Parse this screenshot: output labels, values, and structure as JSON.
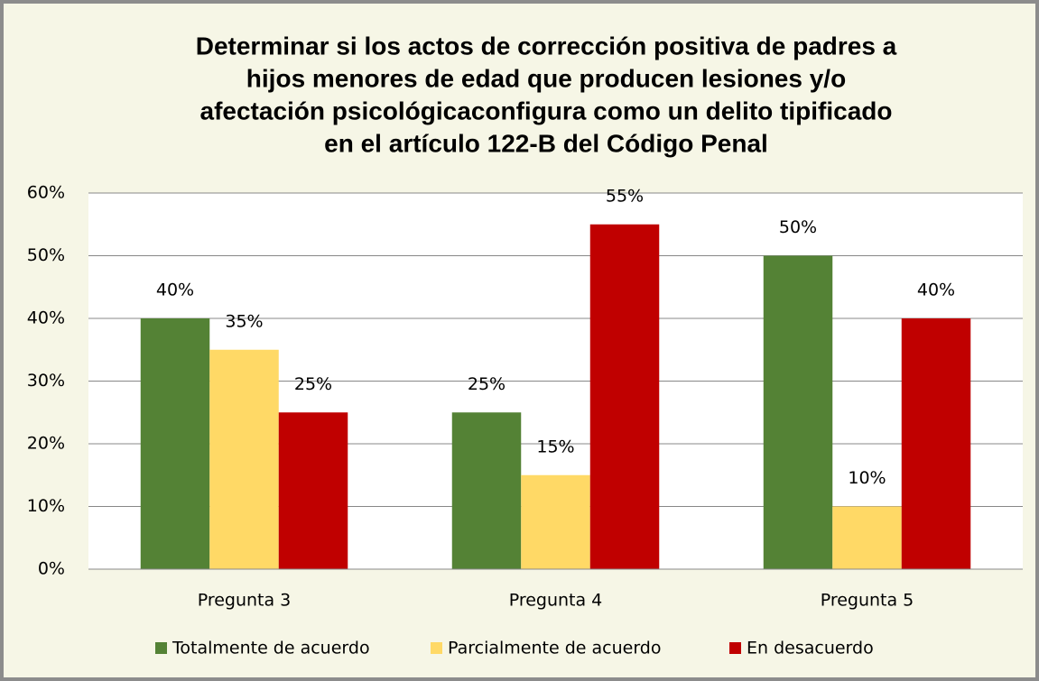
{
  "chart_data": {
    "type": "bar",
    "title": [
      "Determinar si los actos de corrección positiva de padres a",
      "hijos menores de edad que producen lesiones y/o",
      "afectación psicológicaconfigura como un delito tipificado",
      "en el artículo 122-B del Código Penal"
    ],
    "categories": [
      "Pregunta 3",
      "Pregunta 4",
      "Pregunta 5"
    ],
    "series": [
      {
        "name": "Totalmente de acuerdo",
        "color": "#548235",
        "values": [
          40,
          25,
          50
        ],
        "value_labels": [
          "40%",
          "25%",
          "50%"
        ]
      },
      {
        "name": "Parcialmente de acuerdo",
        "color": "#ffd966",
        "values": [
          35,
          15,
          10
        ],
        "value_labels": [
          "35%",
          "15%",
          "10%"
        ]
      },
      {
        "name": "En desacuerdo",
        "color": "#c00000",
        "values": [
          25,
          55,
          40
        ],
        "value_labels": [
          "25%",
          "55%",
          "40%"
        ]
      }
    ],
    "ylim": [
      0,
      60
    ],
    "yticks": [
      {
        "value": 0,
        "label": "0%"
      },
      {
        "value": 10,
        "label": "10%"
      },
      {
        "value": 20,
        "label": "20%"
      },
      {
        "value": 30,
        "label": "30%"
      },
      {
        "value": 40,
        "label": "40%"
      },
      {
        "value": 50,
        "label": "50%"
      },
      {
        "value": 60,
        "label": "60%"
      }
    ],
    "grid": true,
    "legend": "bottom"
  }
}
